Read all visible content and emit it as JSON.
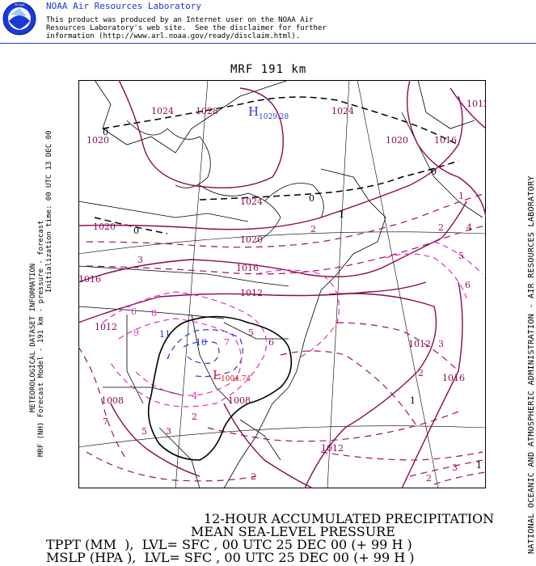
{
  "header": {
    "org_title": "NOAA Air Resources Laboratory",
    "disclaimer_lines": [
      "This product was produced by an Internet user on the NOAA Air",
      "Resources Laboratory's web site.  See the disclaimer for further",
      "information (http://www.arl.noaa.gov/ready/disclaim.html)."
    ],
    "logo_text": "NOAA"
  },
  "map": {
    "model_label": "MRF 191 km",
    "left_side_lines": [
      "METEOROLOGICAL DATASET INFORMATION",
      "MRF (NH) Forecast Model - 191 km - pressure - forecast",
      "Initialization time: 00 UTC 13 DEC 00"
    ],
    "right_side_text": "NATIONAL OCEANIC AND ATMOSPHERIC ADMINISTRATION - AIR RESOURCES LABORATORY",
    "high_label": "H",
    "high_value": "1029.28",
    "low_label": "L",
    "low_value": "1004.74",
    "isobar_labels": [
      "1024",
      "1028",
      "1024",
      "1012",
      "1020",
      "1016",
      "1020",
      "1024",
      "1020",
      "1020",
      "1016",
      "1016",
      "1012",
      "1012",
      "1012",
      "1012",
      "1008",
      "1008",
      "1016",
      "1012"
    ],
    "precip_labels": [
      "0",
      "0",
      "0",
      "1",
      "2",
      "4",
      "5",
      "6",
      "1",
      "2",
      "3",
      "3",
      "6",
      "8",
      "9",
      "11",
      "10",
      "7",
      "5",
      "6",
      "4",
      "2",
      "3",
      "5",
      "7",
      "2",
      "1",
      "2",
      "1",
      "2",
      "3",
      "2",
      "0"
    ],
    "colors": {
      "isobar": "#8b0a50",
      "precip_light": "#a0105a",
      "precip_heavy": "#e030c0",
      "precip_high": "#2a3ad0",
      "zero_contour": "#000000",
      "high_center": "#2a3ad0",
      "low_center": "#e01010"
    }
  },
  "footer": {
    "title_line1": "12-HOUR ACCUMULATED PRECIPITATION",
    "title_line2": "MEAN SEA-LEVEL PRESSURE",
    "line3": "TPPT (MM  ),  LVL= SFC , 00 UTC 25 DEC 00 (+ 99 H )",
    "line4": "MSLP (HPA ),  LVL= SFC , 00 UTC 25 DEC 00 (+ 99 H )"
  }
}
